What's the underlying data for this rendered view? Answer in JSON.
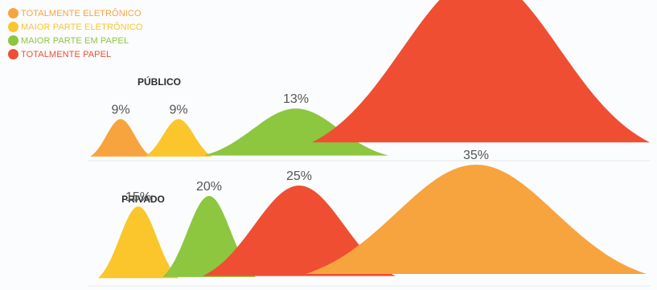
{
  "chart_data": {
    "type": "area",
    "legend": {
      "position": "top-left",
      "entries": [
        {
          "name": "TOTALMENTE ELETRÔNICO",
          "color": "#f7a43f"
        },
        {
          "name": "MAIOR PARTE ELETRÔNICO",
          "color": "#fbc62c"
        },
        {
          "name": "MAIOR PARTE EM PAPEL",
          "color": "#8dc63f"
        },
        {
          "name": "TOTALMENTE PAPEL",
          "color": "#ef4e32"
        }
      ]
    },
    "panels": [
      {
        "label": "PÚBLICO",
        "series": [
          {
            "name": "TOTALMENTE ELETRÔNICO",
            "value": 9,
            "value_label": "9%",
            "color": "#f7a43f"
          },
          {
            "name": "MAIOR PARTE ELETRÔNICO",
            "value": 9,
            "value_label": "9%",
            "color": "#fbc62c"
          },
          {
            "name": "MAIOR PARTE EM PAPEL",
            "value": 13,
            "value_label": "13%",
            "color": "#8dc63f"
          },
          {
            "name": "TOTALMENTE PAPEL",
            "value": null,
            "value_label": "",
            "color": "#ef4e32"
          }
        ]
      },
      {
        "label": "PRIVADO",
        "series": [
          {
            "name": "MAIOR PARTE ELETRÔNICO",
            "value": 15,
            "value_label": "15%",
            "color": "#fbc62c"
          },
          {
            "name": "MAIOR PARTE EM PAPEL",
            "value": 20,
            "value_label": "20%",
            "color": "#8dc63f"
          },
          {
            "name": "TOTALMENTE PAPEL",
            "value": 25,
            "value_label": "25%",
            "color": "#ef4e32"
          },
          {
            "name": "TOTALMENTE ELETRÔNICO",
            "value": 35,
            "value_label": "35%",
            "color": "#f7a43f"
          }
        ]
      }
    ]
  }
}
